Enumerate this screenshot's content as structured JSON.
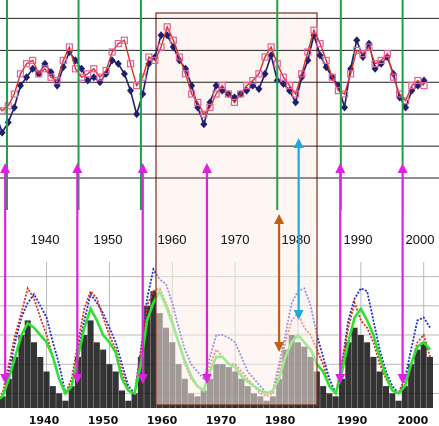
{
  "colors": {
    "highlight_fill": "#fbeee7",
    "highlight_stroke": "#8b2a17",
    "magenta": "#e020e0",
    "green": "#1aa34a",
    "navy": "#1f1f6e",
    "pink_series": "#e060a0",
    "red_series": "#e03020",
    "blue_series": "#2030d0",
    "lime_series": "#30e030",
    "cyan": "#20a8e0",
    "orange": "#c06010",
    "grid": "#222222",
    "black_bars": "#111111"
  },
  "chart_data": [
    {
      "type": "line",
      "panel": "top",
      "xlim": [
        1931,
        2001
      ],
      "ylim": [
        0,
        1
      ],
      "grid": "horizontal",
      "x_ticks": [
        "1940",
        "1950",
        "1960",
        "1970",
        "1980",
        "1990",
        "2000"
      ],
      "x_tick_values": [
        1940,
        1950,
        1960,
        1970,
        1980,
        1990,
        2000
      ],
      "series": [
        {
          "color": "#1f1f6e",
          "marker": "diamond",
          "x": [
            1931,
            1932,
            1933,
            1934,
            1935,
            1936,
            1937,
            1938,
            1939,
            1940,
            1941,
            1942,
            1943,
            1944,
            1945,
            1946,
            1947,
            1948,
            1949,
            1950,
            1951,
            1952,
            1953,
            1954,
            1955,
            1956,
            1957,
            1958,
            1959,
            1960,
            1961,
            1962,
            1963,
            1964,
            1965,
            1966,
            1967,
            1968,
            1969,
            1970,
            1971,
            1972,
            1973,
            1974,
            1975,
            1976,
            1977,
            1978,
            1979,
            1980,
            1981,
            1982,
            1983,
            1984,
            1985,
            1986,
            1987,
            1988,
            1989,
            1990,
            1991,
            1992,
            1993,
            1994,
            1995,
            1996,
            1997,
            1998,
            1999,
            2000,
            2001
          ],
          "y": [
            0.38,
            0.27,
            0.33,
            0.42,
            0.55,
            0.6,
            0.65,
            0.62,
            0.68,
            0.63,
            0.55,
            0.66,
            0.75,
            0.7,
            0.65,
            0.58,
            0.6,
            0.57,
            0.62,
            0.7,
            0.68,
            0.62,
            0.52,
            0.38,
            0.5,
            0.68,
            0.72,
            0.85,
            0.85,
            0.78,
            0.7,
            0.65,
            0.55,
            0.42,
            0.32,
            0.45,
            0.55,
            0.52,
            0.5,
            0.48,
            0.5,
            0.52,
            0.55,
            0.53,
            0.62,
            0.73,
            0.58,
            0.56,
            0.52,
            0.45,
            0.6,
            0.7,
            0.85,
            0.73,
            0.66,
            0.6,
            0.55,
            0.42,
            0.65,
            0.82,
            0.72,
            0.8,
            0.65,
            0.68,
            0.72,
            0.62,
            0.48,
            0.42,
            0.52,
            0.55,
            0.58
          ]
        },
        {
          "color": "#e060a0",
          "marker": "square",
          "x": [
            1931,
            1932,
            1933,
            1934,
            1935,
            1936,
            1937,
            1938,
            1939,
            1940,
            1941,
            1942,
            1943,
            1944,
            1945,
            1946,
            1947,
            1948,
            1949,
            1950,
            1951,
            1952,
            1953,
            1954,
            1955,
            1956,
            1957,
            1958,
            1959,
            1960,
            1961,
            1962,
            1963,
            1964,
            1965,
            1966,
            1967,
            1968,
            1969,
            1970,
            1971,
            1972,
            1973,
            1974,
            1975,
            1976,
            1977,
            1978,
            1979,
            1980,
            1981,
            1982,
            1983,
            1984,
            1985,
            1986,
            1987,
            1988,
            1989,
            1990,
            1991,
            1992,
            1993,
            1994,
            1995,
            1996,
            1997,
            1998,
            1999,
            2000,
            2001
          ],
          "y": [
            0.45,
            0.4,
            0.43,
            0.5,
            0.62,
            0.68,
            0.7,
            0.62,
            0.65,
            0.6,
            0.58,
            0.7,
            0.78,
            0.65,
            0.6,
            0.62,
            0.65,
            0.6,
            0.64,
            0.75,
            0.8,
            0.82,
            0.68,
            0.55,
            0.6,
            0.72,
            0.7,
            0.78,
            0.9,
            0.82,
            0.72,
            0.62,
            0.5,
            0.45,
            0.38,
            0.42,
            0.5,
            0.55,
            0.5,
            0.45,
            0.5,
            0.55,
            0.58,
            0.62,
            0.72,
            0.78,
            0.68,
            0.6,
            0.55,
            0.5,
            0.62,
            0.75,
            0.88,
            0.8,
            0.7,
            0.6,
            0.52,
            0.5,
            0.62,
            0.76,
            0.74,
            0.78,
            0.68,
            0.7,
            0.74,
            0.6,
            0.5,
            0.46,
            0.55,
            0.58,
            0.55
          ]
        }
      ]
    },
    {
      "type": "line",
      "panel": "bottom",
      "xlim": [
        1931,
        2001
      ],
      "ylim": [
        0,
        1
      ],
      "grid": "both",
      "x_ticks": [
        "1940",
        "1950",
        "1960",
        "1970",
        "1980",
        "1990",
        "2000"
      ],
      "x_tick_values": [
        1940,
        1950,
        1960,
        1970,
        1980,
        1990,
        2000
      ],
      "series": [
        {
          "color": "#2030d0",
          "style": "dotted",
          "x": [
            1931,
            1932,
            1933,
            1934,
            1935,
            1936,
            1937,
            1938,
            1939,
            1940,
            1941,
            1942,
            1943,
            1944,
            1945,
            1946,
            1947,
            1948,
            1949,
            1950,
            1951,
            1952,
            1953,
            1954,
            1955,
            1956,
            1957,
            1958,
            1959,
            1960,
            1961,
            1962,
            1963,
            1964,
            1965,
            1966,
            1967,
            1968,
            1969,
            1970,
            1971,
            1972,
            1973,
            1974,
            1975,
            1976,
            1977,
            1978,
            1979,
            1980,
            1981,
            1982,
            1983,
            1984,
            1985,
            1986,
            1987,
            1988,
            1989,
            1990,
            1991,
            1992,
            1993,
            1994,
            1995,
            1996,
            1997,
            1998,
            1999,
            2000,
            2001
          ],
          "y": [
            0.05,
            0.05,
            0.1,
            0.25,
            0.45,
            0.62,
            0.72,
            0.78,
            0.7,
            0.62,
            0.45,
            0.3,
            0.1,
            0.15,
            0.4,
            0.6,
            0.78,
            0.72,
            0.65,
            0.55,
            0.45,
            0.3,
            0.15,
            0.1,
            0.4,
            0.75,
            0.95,
            0.88,
            0.85,
            0.72,
            0.55,
            0.4,
            0.3,
            0.25,
            0.2,
            0.35,
            0.5,
            0.5,
            0.48,
            0.45,
            0.35,
            0.25,
            0.2,
            0.15,
            0.1,
            0.12,
            0.3,
            0.5,
            0.72,
            0.8,
            0.82,
            0.7,
            0.5,
            0.35,
            0.2,
            0.1,
            0.3,
            0.6,
            0.75,
            0.82,
            0.8,
            0.6,
            0.4,
            0.25,
            0.15,
            0.1,
            0.2,
            0.4,
            0.6,
            0.62,
            0.55
          ]
        },
        {
          "color": "#e03020",
          "style": "dotted",
          "x": [
            1931,
            1932,
            1933,
            1934,
            1935,
            1936,
            1937,
            1938,
            1939,
            1940,
            1941,
            1942,
            1943,
            1944,
            1945,
            1946,
            1947,
            1948,
            1949,
            1950,
            1951,
            1952,
            1953,
            1954,
            1955,
            1956,
            1957,
            1958,
            1959,
            1960,
            1961,
            1962,
            1963,
            1964,
            1965,
            1966,
            1967,
            1968,
            1969,
            1970,
            1971,
            1972,
            1973,
            1974,
            1975,
            1976,
            1977,
            1978,
            1979,
            1980,
            1981,
            1982,
            1983,
            1984,
            1985,
            1986,
            1987,
            1988,
            1989,
            1990,
            1991,
            1992,
            1993,
            1994,
            1995,
            1996,
            1997,
            1998,
            1999,
            2000,
            2001
          ],
          "y": [
            0.05,
            0.05,
            0.1,
            0.3,
            0.5,
            0.65,
            0.82,
            0.75,
            0.62,
            0.5,
            0.35,
            0.2,
            0.1,
            0.2,
            0.45,
            0.68,
            0.8,
            0.75,
            0.62,
            0.5,
            0.4,
            0.25,
            0.12,
            0.1,
            0.38,
            0.7,
            0.8,
            0.82,
            0.72,
            0.6,
            0.45,
            0.3,
            0.2,
            0.15,
            0.12,
            0.3,
            0.4,
            0.35,
            0.3,
            0.3,
            0.25,
            0.2,
            0.15,
            0.1,
            0.08,
            0.1,
            0.25,
            0.45,
            0.6,
            0.65,
            0.55,
            0.5,
            0.4,
            0.3,
            0.15,
            0.1,
            0.3,
            0.55,
            0.72,
            0.6,
            0.55,
            0.45,
            0.3,
            0.2,
            0.12,
            0.1,
            0.2,
            0.3,
            0.45,
            0.5,
            0.35
          ]
        },
        {
          "color": "#30e030",
          "style": "solid",
          "x": [
            1931,
            1932,
            1933,
            1934,
            1935,
            1936,
            1937,
            1938,
            1939,
            1940,
            1941,
            1942,
            1943,
            1944,
            1945,
            1946,
            1947,
            1948,
            1949,
            1950,
            1951,
            1952,
            1953,
            1954,
            1955,
            1956,
            1957,
            1958,
            1959,
            1960,
            1961,
            1962,
            1963,
            1964,
            1965,
            1966,
            1967,
            1968,
            1969,
            1970,
            1971,
            1972,
            1973,
            1974,
            1975,
            1976,
            1977,
            1978,
            1979,
            1980,
            1981,
            1982,
            1983,
            1984,
            1985,
            1986,
            1987,
            1988,
            1989,
            1990,
            1991,
            1992,
            1993,
            1994,
            1995,
            1996,
            1997,
            1998,
            1999,
            2000,
            2001
          ],
          "y": [
            0.05,
            0.05,
            0.08,
            0.2,
            0.35,
            0.5,
            0.58,
            0.55,
            0.5,
            0.45,
            0.35,
            0.2,
            0.1,
            0.15,
            0.35,
            0.55,
            0.68,
            0.6,
            0.5,
            0.45,
            0.38,
            0.2,
            0.12,
            0.1,
            0.3,
            0.6,
            0.72,
            0.8,
            0.7,
            0.58,
            0.45,
            0.32,
            0.22,
            0.15,
            0.12,
            0.25,
            0.35,
            0.35,
            0.3,
            0.28,
            0.22,
            0.18,
            0.15,
            0.12,
            0.1,
            0.12,
            0.2,
            0.35,
            0.45,
            0.5,
            0.45,
            0.4,
            0.3,
            0.25,
            0.15,
            0.1,
            0.25,
            0.45,
            0.62,
            0.68,
            0.6,
            0.5,
            0.35,
            0.22,
            0.12,
            0.1,
            0.15,
            0.3,
            0.42,
            0.45,
            0.4
          ]
        },
        {
          "color": "#111111",
          "style": "bars",
          "x": [
            1933,
            1934,
            1935,
            1936,
            1937,
            1938,
            1939,
            1940,
            1941,
            1942,
            1943,
            1944,
            1945,
            1946,
            1947,
            1948,
            1949,
            1950,
            1951,
            1952,
            1953,
            1954,
            1955,
            1956,
            1957,
            1958,
            1959,
            1960,
            1961,
            1962,
            1963,
            1964,
            1965,
            1966,
            1967,
            1968,
            1969,
            1970,
            1971,
            1972,
            1973,
            1974,
            1975,
            1976,
            1977,
            1978,
            1979,
            1980,
            1981,
            1982,
            1983,
            1984,
            1985,
            1986,
            1987,
            1988,
            1989,
            1990,
            1991,
            1992,
            1993,
            1994,
            1995,
            1996,
            1997,
            1998,
            1999,
            2000,
            2001
          ],
          "y": [
            0.08,
            0.2,
            0.35,
            0.5,
            0.6,
            0.45,
            0.35,
            0.25,
            0.15,
            0.1,
            0.05,
            0.15,
            0.35,
            0.5,
            0.6,
            0.45,
            0.4,
            0.3,
            0.25,
            0.12,
            0.05,
            0.1,
            0.35,
            0.7,
            0.8,
            0.65,
            0.55,
            0.45,
            0.3,
            0.2,
            0.1,
            0.08,
            0.12,
            0.2,
            0.3,
            0.3,
            0.28,
            0.25,
            0.2,
            0.15,
            0.1,
            0.08,
            0.05,
            0.08,
            0.2,
            0.4,
            0.5,
            0.45,
            0.42,
            0.35,
            0.25,
            0.15,
            0.1,
            0.08,
            0.2,
            0.45,
            0.55,
            0.5,
            0.45,
            0.35,
            0.25,
            0.15,
            0.1,
            0.05,
            0.15,
            0.3,
            0.4,
            0.45,
            0.35
          ]
        }
      ]
    }
  ],
  "annotations": {
    "highlight_years": [
      1956.5,
      1984.5
    ],
    "green_lines_years": [
      1932.8,
      1944.5,
      1954.7,
      1977.0,
      1987.4,
      1997.5
    ],
    "magenta_arrow_years": [
      1932.5,
      1944.3,
      1955.0,
      1965.5,
      1987.3,
      1997.5
    ],
    "cyan_arrow_year": 1980.5,
    "orange_arrow_year": 1977.3
  }
}
